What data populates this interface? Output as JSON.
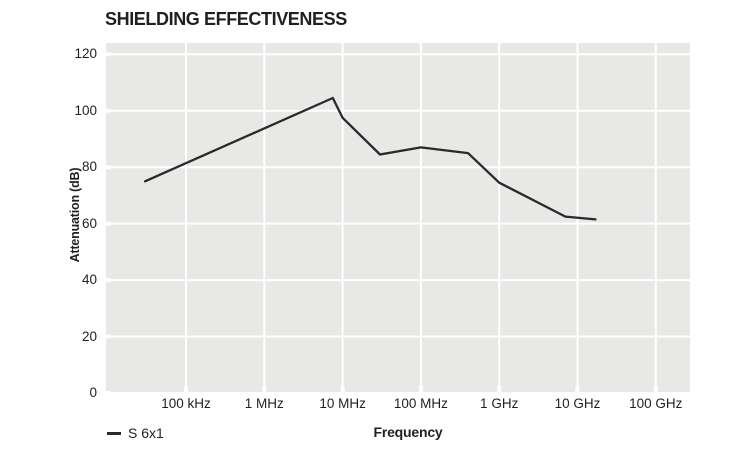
{
  "chart_data": {
    "type": "line",
    "title": "SHIELDING EFFECTIVENESS",
    "xlabel": "Frequency",
    "ylabel": "Attenuation (dB)",
    "x_scale": "log",
    "xlim_log10": [
      3.978,
      11.437
    ],
    "ylim": [
      0,
      124
    ],
    "y_ticks": [
      0,
      20,
      40,
      60,
      80,
      100,
      120
    ],
    "x_ticks": [
      {
        "label": "100 kHz",
        "hz": 100000
      },
      {
        "label": "1 MHz",
        "hz": 1000000
      },
      {
        "label": "10 MHz",
        "hz": 10000000
      },
      {
        "label": "100 MHz",
        "hz": 100000000
      },
      {
        "label": "1 GHz",
        "hz": 1000000000
      },
      {
        "label": "10 GHz",
        "hz": 10000000000
      },
      {
        "label": "100 GHz",
        "hz": 100000000000
      }
    ],
    "grid": true,
    "legend": {
      "position": "bottom-left",
      "entries": [
        {
          "name": "S 6x1"
        }
      ]
    },
    "series": [
      {
        "name": "S 6x1",
        "color": "#2b2a2a",
        "points": [
          {
            "hz": 30000,
            "db": 75
          },
          {
            "hz": 7500000,
            "db": 104.5
          },
          {
            "hz": 10000000,
            "db": 97.5
          },
          {
            "hz": 30000000,
            "db": 84.5
          },
          {
            "hz": 100000000,
            "db": 87
          },
          {
            "hz": 400000000,
            "db": 85
          },
          {
            "hz": 1000000000,
            "db": 74.5
          },
          {
            "hz": 7000000000,
            "db": 62.5
          },
          {
            "hz": 17000000000,
            "db": 61.5
          }
        ]
      }
    ],
    "colors": {
      "plot_bg": "#e8e8e7",
      "grid": "#ffffff",
      "line": "#2b2a2a",
      "text": "#231f20"
    }
  }
}
